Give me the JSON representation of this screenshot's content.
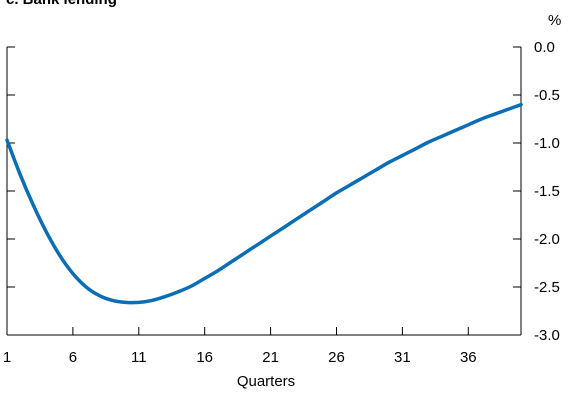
{
  "chart_data": {
    "type": "line",
    "title": "c. Bank lending",
    "unit": "%",
    "xlabel": "Quarters",
    "ylabel": "",
    "xlim": [
      1,
      40
    ],
    "ylim": [
      -3.0,
      0.0
    ],
    "x_ticks": [
      1,
      6,
      11,
      16,
      21,
      26,
      31,
      36
    ],
    "y_ticks": [
      "0.0",
      "-0.5",
      "-1.0",
      "-1.5",
      "-2.0",
      "-2.5",
      "-3.0"
    ],
    "y_axis_side": "right",
    "grid": false,
    "series": [
      {
        "color": "#0a6db5",
        "x": [
          1,
          2,
          3,
          4,
          5,
          6,
          7,
          8,
          9,
          10,
          11,
          12,
          13,
          14,
          15,
          16,
          17,
          18,
          19,
          20,
          21,
          22,
          23,
          24,
          25,
          26,
          27,
          28,
          29,
          30,
          31,
          32,
          33,
          34,
          35,
          36,
          37,
          38,
          39,
          40
        ],
        "y": [
          -0.97,
          -1.33,
          -1.65,
          -1.93,
          -2.17,
          -2.36,
          -2.5,
          -2.59,
          -2.64,
          -2.66,
          -2.66,
          -2.64,
          -2.6,
          -2.55,
          -2.49,
          -2.41,
          -2.33,
          -2.24,
          -2.15,
          -2.06,
          -1.97,
          -1.88,
          -1.79,
          -1.7,
          -1.61,
          -1.52,
          -1.44,
          -1.36,
          -1.28,
          -1.2,
          -1.13,
          -1.06,
          -0.99,
          -0.93,
          -0.87,
          -0.81,
          -0.75,
          -0.7,
          -0.65,
          -0.6
        ]
      }
    ]
  }
}
